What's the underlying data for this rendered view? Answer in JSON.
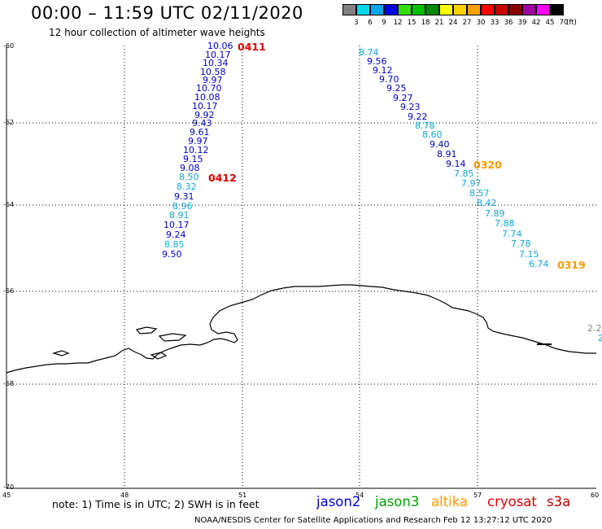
{
  "header": {
    "title": "00:00 – 11:59 UTC 02/11/2020",
    "subtitle": "12 hour collection of altimeter wave heights"
  },
  "color_scale": {
    "labels": [
      "3",
      "6",
      "9",
      "12",
      "15",
      "18",
      "21",
      "24",
      "27",
      "30",
      "33",
      "36",
      "39",
      "42",
      "45",
      "70"
    ],
    "unit": "(ft)",
    "colors": [
      "#808080",
      "#00d8e8",
      "#00a8f0",
      "#0000e0",
      "#30e000",
      "#00c000",
      "#008800",
      "#ffff00",
      "#ffd000",
      "#ffa000",
      "#ff0000",
      "#c80000",
      "#880000",
      "#a000a0",
      "#ff00ff",
      "#000000"
    ]
  },
  "axes": {
    "lat_labels": [
      "-60",
      "-62",
      "-64",
      "-66",
      "-68",
      "-70"
    ],
    "lon_labels": [
      "45",
      "48",
      "51",
      "54",
      "57",
      "60"
    ]
  },
  "track_left": {
    "values": [
      "10.06",
      "10.17",
      "10.34",
      "10.58",
      "9.97",
      "10.70",
      "10.08",
      "10.17",
      "9.92",
      "9.43",
      "9.61",
      "9.97",
      "10.12",
      "9.15",
      "9.08",
      "8.50",
      "8.32",
      "9.31",
      "8.96",
      "8.91",
      "10.17",
      "9.24",
      "8.85",
      "9.50"
    ],
    "labels": [
      "0411",
      "0412"
    ]
  },
  "track_right": {
    "values": [
      "8.74",
      "9.56",
      "9.12",
      "9.70",
      "9.25",
      "9.27",
      "9.23",
      "9.22",
      "8.78",
      "8.60",
      "9.40",
      "8.91",
      "9.14",
      "7.85",
      "7.97",
      "8.57",
      "8.42",
      "7.89",
      "7.88",
      "7.74",
      "7.78",
      "7.15",
      "6.74"
    ],
    "labels": [
      "0320",
      "0319"
    ]
  },
  "edge_values": [
    "2.2",
    "2"
  ],
  "note": "note: 1) Time is in UTC; 2) SWH is in feet",
  "legend": [
    "jason2",
    "jason3",
    "altika",
    "cryosat",
    "s3a"
  ],
  "legend_colors": [
    "#0000e0",
    "#00a000",
    "#ff9900",
    "#e00000",
    "#c00000"
  ],
  "label_colors": {
    "jason2_pass": "#e00000",
    "altika_pass": "#ff9900"
  },
  "credit": "NOAA/NESDIS Center for Satellite Applications and Research     Feb 12 13:27:12 UTC 2020"
}
